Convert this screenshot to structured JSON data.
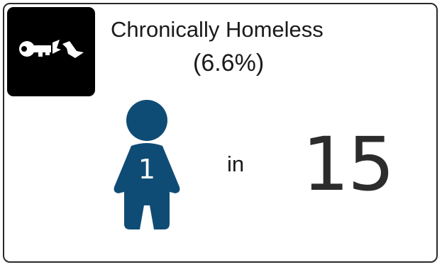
{
  "card": {
    "title": "Chronically Homeless",
    "percentage": "(6.6%)",
    "icon": "broken-key-icon",
    "person_icon": "person-icon",
    "person_number": "1",
    "ratio_word": "in",
    "ratio_number": "15"
  },
  "colors": {
    "person": "#0f4c75",
    "icon_bg": "#000000",
    "text": "#1a1a1a"
  }
}
